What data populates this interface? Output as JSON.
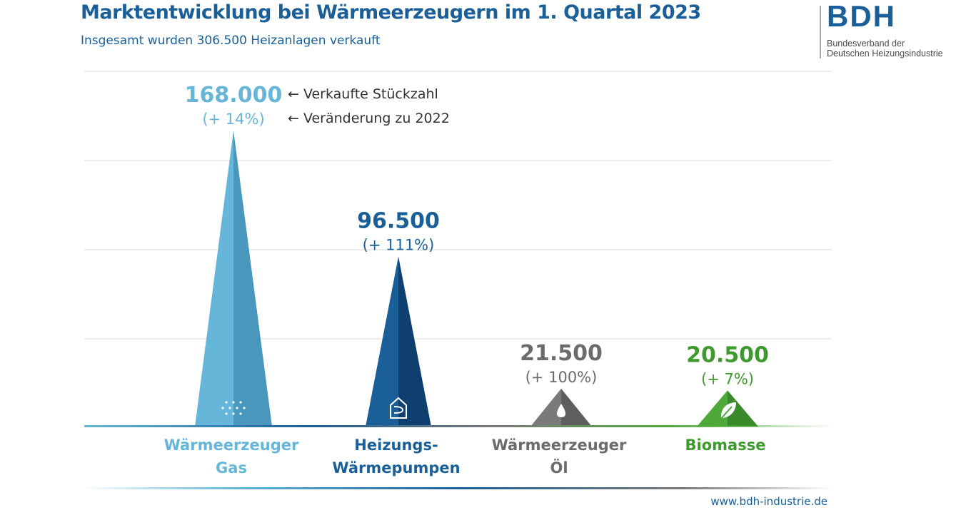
{
  "title": "Marktentwicklung bei Wärmeerzeugern im 1. Quartal 2023",
  "subtitle": "Insgesamt wurden 306.500 Heizanlagen verkauft",
  "logo": {
    "text": "BDH",
    "line1": "Bundesverband der",
    "line2": "Deutschen Heizungsindustrie"
  },
  "legend": {
    "value_note": "← Verkaufte Stückzahl",
    "change_note": "← Veränderung zu 2022"
  },
  "url": "www.bdh-industrie.de",
  "chart_data": {
    "type": "bar",
    "title": "Marktentwicklung bei Wärmeerzeugern im 1. Quartal 2023",
    "grid": true,
    "ylim": [
      0,
      200000
    ],
    "categories": [
      [
        "Wärmeerzeuger",
        "Gas"
      ],
      [
        "Heizungs-",
        "Wärmepumpen"
      ],
      [
        "Wärmeerzeuger",
        "Öl"
      ],
      [
        "Biomasse"
      ]
    ],
    "values": [
      168000,
      96500,
      21500,
      20500
    ],
    "value_labels": [
      "168.000",
      "96.500",
      "21.500",
      "20.500"
    ],
    "change_labels": [
      "(+ 14%)",
      "(+ 111%)",
      "(+ 100%)",
      "(+ 7%)"
    ],
    "colors": {
      "gas": {
        "light": "#66b6d9",
        "dark": "#4a97bd"
      },
      "heat_pump": {
        "light": "#1a5f97",
        "dark": "#0e3f6e"
      },
      "oil": {
        "light": "#7a7a7a",
        "dark": "#5e5e5e"
      },
      "biomass": {
        "light": "#4ea83a",
        "dark": "#3a8a2b"
      },
      "text": [
        "#66b6d9",
        "#1a5f97",
        "#6b6b6b",
        "#3e9a2e"
      ]
    },
    "icons": [
      "gas-flame-dots-icon",
      "heat-pump-house-icon",
      "oil-drop-icon",
      "leaf-icon"
    ]
  }
}
